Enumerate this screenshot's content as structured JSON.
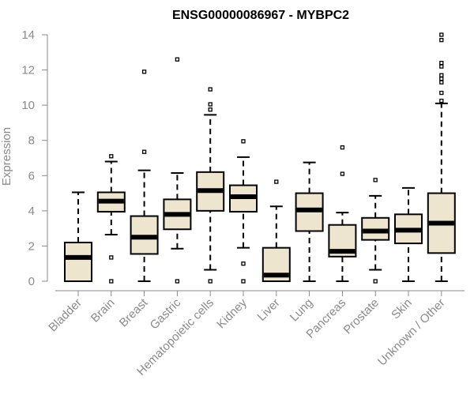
{
  "chart_data": {
    "type": "boxplot",
    "title": "ENSG00000086967 - MYBPC2",
    "xlabel": "",
    "ylabel": "Expression",
    "ylim": [
      0,
      14
    ],
    "yticks": [
      0,
      2,
      4,
      6,
      8,
      10,
      12,
      14
    ],
    "box_color": "#ede5ce",
    "axis_color": "#8a8a8a",
    "categories": [
      "Bladder",
      "Brain",
      "Breast",
      "Gastric",
      "Hematopoietic cells",
      "Kidney",
      "Liver",
      "Lung",
      "Pancreas",
      "Prostate",
      "Skin",
      "Unknown / Other"
    ],
    "boxes": [
      {
        "min": 0.0,
        "q1": 0.0,
        "median": 1.35,
        "q3": 2.2,
        "max": 5.05,
        "outliers": []
      },
      {
        "min": 2.65,
        "q1": 3.95,
        "median": 4.55,
        "q3": 5.05,
        "max": 6.8,
        "outliers": [
          7.1,
          1.35,
          0.0
        ]
      },
      {
        "min": 0.0,
        "q1": 1.55,
        "median": 2.5,
        "q3": 3.7,
        "max": 6.3,
        "outliers": [
          11.9,
          7.35
        ]
      },
      {
        "min": 1.85,
        "q1": 2.95,
        "median": 3.8,
        "q3": 4.65,
        "max": 6.15,
        "outliers": [
          12.6,
          0.0
        ]
      },
      {
        "min": 0.65,
        "q1": 4.0,
        "median": 5.15,
        "q3": 6.2,
        "max": 9.45,
        "outliers": [
          10.9,
          10.05,
          9.75,
          0.0
        ]
      },
      {
        "min": 1.9,
        "q1": 3.95,
        "median": 4.8,
        "q3": 5.45,
        "max": 7.05,
        "outliers": [
          7.95,
          1.0,
          0.0
        ]
      },
      {
        "min": 0.0,
        "q1": 0.0,
        "median": 0.35,
        "q3": 1.9,
        "max": 4.25,
        "outliers": [
          5.65
        ]
      },
      {
        "min": 0.0,
        "q1": 2.85,
        "median": 4.05,
        "q3": 5.0,
        "max": 6.75,
        "outliers": []
      },
      {
        "min": 0.0,
        "q1": 1.4,
        "median": 1.7,
        "q3": 3.2,
        "max": 3.9,
        "outliers": [
          7.6,
          6.1
        ]
      },
      {
        "min": 0.65,
        "q1": 2.35,
        "median": 2.85,
        "q3": 3.6,
        "max": 4.85,
        "outliers": [
          5.75,
          0.0
        ]
      },
      {
        "min": 0.0,
        "q1": 2.15,
        "median": 2.9,
        "q3": 3.8,
        "max": 5.3,
        "outliers": []
      },
      {
        "min": 0.0,
        "q1": 1.6,
        "median": 3.3,
        "q3": 5.0,
        "max": 10.1,
        "outliers": [
          14.0,
          13.7,
          12.4,
          12.2,
          11.7,
          11.5,
          11.3,
          10.7,
          10.25
        ]
      }
    ]
  }
}
